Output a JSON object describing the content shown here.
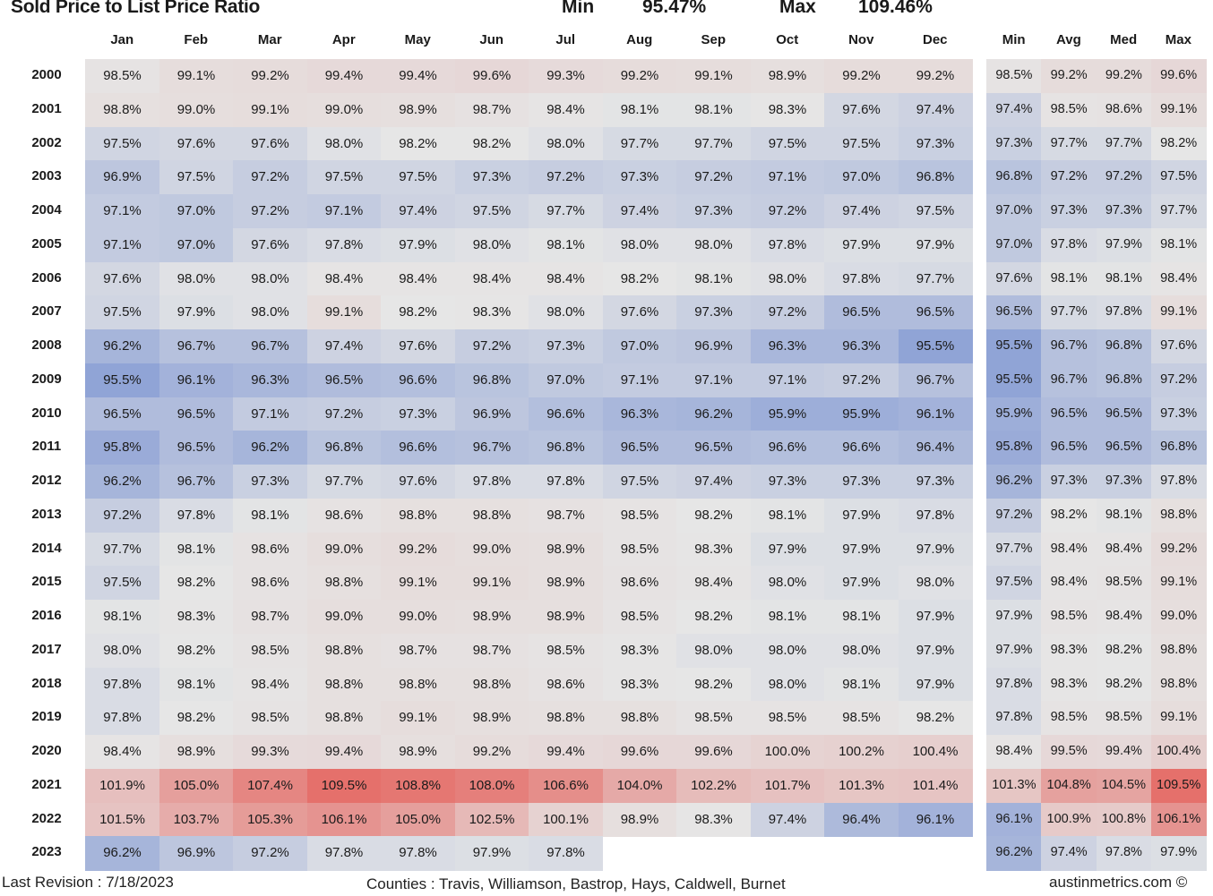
{
  "header": {
    "title": "Sold Price to List Price Ratio",
    "min_label": "Min",
    "min_value": "95.47%",
    "max_label": "Max",
    "max_value": "109.46%"
  },
  "footer": {
    "revision": "Last Revision : 7/18/2023",
    "counties": "Counties : Travis, Williamson, Bastrop, Hays, Caldwell, Burnet",
    "credit": "austinmetrics.com ©"
  },
  "colors": {
    "low": "#8fa3d6",
    "mid": "#e6e6e6",
    "high": "#e5706b"
  },
  "chart_data": {
    "type": "heatmap",
    "title": "Sold Price to List Price Ratio",
    "color_scale": {
      "min": 95.47,
      "mid": 98.2,
      "max": 109.46
    },
    "months": [
      "Jan",
      "Feb",
      "Mar",
      "Apr",
      "May",
      "Jun",
      "Jul",
      "Aug",
      "Sep",
      "Oct",
      "Nov",
      "Dec"
    ],
    "stat_columns": [
      "Min",
      "Avg",
      "Med",
      "Max"
    ],
    "years": [
      "2000",
      "2001",
      "2002",
      "2003",
      "2004",
      "2005",
      "2006",
      "2007",
      "2008",
      "2009",
      "2010",
      "2011",
      "2012",
      "2013",
      "2014",
      "2015",
      "2016",
      "2017",
      "2018",
      "2019",
      "2020",
      "2021",
      "2022",
      "2023"
    ],
    "values": [
      [
        "98.5%",
        "99.1%",
        "99.2%",
        "99.4%",
        "99.4%",
        "99.6%",
        "99.3%",
        "99.2%",
        "99.1%",
        "98.9%",
        "99.2%",
        "99.2%"
      ],
      [
        "98.8%",
        "99.0%",
        "99.1%",
        "99.0%",
        "98.9%",
        "98.7%",
        "98.4%",
        "98.1%",
        "98.1%",
        "98.3%",
        "97.6%",
        "97.4%"
      ],
      [
        "97.5%",
        "97.6%",
        "97.6%",
        "98.0%",
        "98.2%",
        "98.2%",
        "98.0%",
        "97.7%",
        "97.7%",
        "97.5%",
        "97.5%",
        "97.3%"
      ],
      [
        "96.9%",
        "97.5%",
        "97.2%",
        "97.5%",
        "97.5%",
        "97.3%",
        "97.2%",
        "97.3%",
        "97.2%",
        "97.1%",
        "97.0%",
        "96.8%"
      ],
      [
        "97.1%",
        "97.0%",
        "97.2%",
        "97.1%",
        "97.4%",
        "97.5%",
        "97.7%",
        "97.4%",
        "97.3%",
        "97.2%",
        "97.4%",
        "97.5%"
      ],
      [
        "97.1%",
        "97.0%",
        "97.6%",
        "97.8%",
        "97.9%",
        "98.0%",
        "98.1%",
        "98.0%",
        "98.0%",
        "97.8%",
        "97.9%",
        "97.9%"
      ],
      [
        "97.6%",
        "98.0%",
        "98.0%",
        "98.4%",
        "98.4%",
        "98.4%",
        "98.4%",
        "98.2%",
        "98.1%",
        "98.0%",
        "97.8%",
        "97.7%"
      ],
      [
        "97.5%",
        "97.9%",
        "98.0%",
        "99.1%",
        "98.2%",
        "98.3%",
        "98.0%",
        "97.6%",
        "97.3%",
        "97.2%",
        "96.5%",
        "96.5%"
      ],
      [
        "96.2%",
        "96.7%",
        "96.7%",
        "97.4%",
        "97.6%",
        "97.2%",
        "97.3%",
        "97.0%",
        "96.9%",
        "96.3%",
        "96.3%",
        "95.5%"
      ],
      [
        "95.5%",
        "96.1%",
        "96.3%",
        "96.5%",
        "96.6%",
        "96.8%",
        "97.0%",
        "97.1%",
        "97.1%",
        "97.1%",
        "97.2%",
        "96.7%"
      ],
      [
        "96.5%",
        "96.5%",
        "97.1%",
        "97.2%",
        "97.3%",
        "96.9%",
        "96.6%",
        "96.3%",
        "96.2%",
        "95.9%",
        "95.9%",
        "96.1%"
      ],
      [
        "95.8%",
        "96.5%",
        "96.2%",
        "96.8%",
        "96.6%",
        "96.7%",
        "96.8%",
        "96.5%",
        "96.5%",
        "96.6%",
        "96.6%",
        "96.4%"
      ],
      [
        "96.2%",
        "96.7%",
        "97.3%",
        "97.7%",
        "97.6%",
        "97.8%",
        "97.8%",
        "97.5%",
        "97.4%",
        "97.3%",
        "97.3%",
        "97.3%"
      ],
      [
        "97.2%",
        "97.8%",
        "98.1%",
        "98.6%",
        "98.8%",
        "98.8%",
        "98.7%",
        "98.5%",
        "98.2%",
        "98.1%",
        "97.9%",
        "97.8%"
      ],
      [
        "97.7%",
        "98.1%",
        "98.6%",
        "99.0%",
        "99.2%",
        "99.0%",
        "98.9%",
        "98.5%",
        "98.3%",
        "97.9%",
        "97.9%",
        "97.9%"
      ],
      [
        "97.5%",
        "98.2%",
        "98.6%",
        "98.8%",
        "99.1%",
        "99.1%",
        "98.9%",
        "98.6%",
        "98.4%",
        "98.0%",
        "97.9%",
        "98.0%"
      ],
      [
        "98.1%",
        "98.3%",
        "98.7%",
        "99.0%",
        "99.0%",
        "98.9%",
        "98.9%",
        "98.5%",
        "98.2%",
        "98.1%",
        "98.1%",
        "97.9%"
      ],
      [
        "98.0%",
        "98.2%",
        "98.5%",
        "98.8%",
        "98.7%",
        "98.7%",
        "98.5%",
        "98.3%",
        "98.0%",
        "98.0%",
        "98.0%",
        "97.9%"
      ],
      [
        "97.8%",
        "98.1%",
        "98.4%",
        "98.8%",
        "98.8%",
        "98.8%",
        "98.6%",
        "98.3%",
        "98.2%",
        "98.0%",
        "98.1%",
        "97.9%"
      ],
      [
        "97.8%",
        "98.2%",
        "98.5%",
        "98.8%",
        "99.1%",
        "98.9%",
        "98.8%",
        "98.8%",
        "98.5%",
        "98.5%",
        "98.5%",
        "98.2%"
      ],
      [
        "98.4%",
        "98.9%",
        "99.3%",
        "99.4%",
        "98.9%",
        "99.2%",
        "99.4%",
        "99.6%",
        "99.6%",
        "100.0%",
        "100.2%",
        "100.4%"
      ],
      [
        "101.9%",
        "105.0%",
        "107.4%",
        "109.5%",
        "108.8%",
        "108.0%",
        "106.6%",
        "104.0%",
        "102.2%",
        "101.7%",
        "101.3%",
        "101.4%"
      ],
      [
        "101.5%",
        "103.7%",
        "105.3%",
        "106.1%",
        "105.0%",
        "102.5%",
        "100.1%",
        "98.9%",
        "98.3%",
        "97.4%",
        "96.4%",
        "96.1%"
      ],
      [
        "96.2%",
        "96.9%",
        "97.2%",
        "97.8%",
        "97.8%",
        "97.9%",
        "97.8%",
        null,
        null,
        null,
        null,
        null
      ]
    ],
    "stats": [
      [
        "98.5%",
        "99.2%",
        "99.2%",
        "99.6%"
      ],
      [
        "97.4%",
        "98.5%",
        "98.6%",
        "99.1%"
      ],
      [
        "97.3%",
        "97.7%",
        "97.7%",
        "98.2%"
      ],
      [
        "96.8%",
        "97.2%",
        "97.2%",
        "97.5%"
      ],
      [
        "97.0%",
        "97.3%",
        "97.3%",
        "97.7%"
      ],
      [
        "97.0%",
        "97.8%",
        "97.9%",
        "98.1%"
      ],
      [
        "97.6%",
        "98.1%",
        "98.1%",
        "98.4%"
      ],
      [
        "96.5%",
        "97.7%",
        "97.8%",
        "99.1%"
      ],
      [
        "95.5%",
        "96.7%",
        "96.8%",
        "97.6%"
      ],
      [
        "95.5%",
        "96.7%",
        "96.8%",
        "97.2%"
      ],
      [
        "95.9%",
        "96.5%",
        "96.5%",
        "97.3%"
      ],
      [
        "95.8%",
        "96.5%",
        "96.5%",
        "96.8%"
      ],
      [
        "96.2%",
        "97.3%",
        "97.3%",
        "97.8%"
      ],
      [
        "97.2%",
        "98.2%",
        "98.1%",
        "98.8%"
      ],
      [
        "97.7%",
        "98.4%",
        "98.4%",
        "99.2%"
      ],
      [
        "97.5%",
        "98.4%",
        "98.5%",
        "99.1%"
      ],
      [
        "97.9%",
        "98.5%",
        "98.4%",
        "99.0%"
      ],
      [
        "97.9%",
        "98.3%",
        "98.2%",
        "98.8%"
      ],
      [
        "97.8%",
        "98.3%",
        "98.2%",
        "98.8%"
      ],
      [
        "97.8%",
        "98.5%",
        "98.5%",
        "99.1%"
      ],
      [
        "98.4%",
        "99.5%",
        "99.4%",
        "100.4%"
      ],
      [
        "101.3%",
        "104.8%",
        "104.5%",
        "109.5%"
      ],
      [
        "96.1%",
        "100.9%",
        "100.8%",
        "106.1%"
      ],
      [
        "96.2%",
        "97.4%",
        "97.8%",
        "97.9%"
      ]
    ]
  }
}
